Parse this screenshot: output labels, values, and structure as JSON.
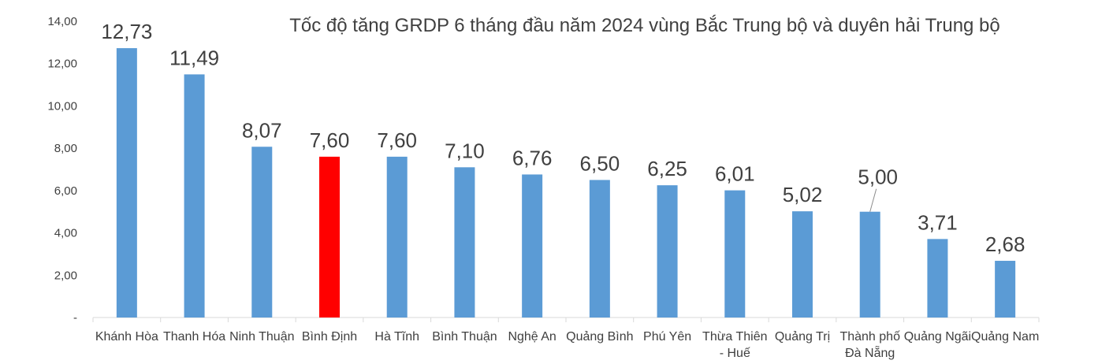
{
  "chart_data": {
    "type": "bar",
    "title": "Tốc độ tăng GRDP 6 tháng đầu năm 2024 vùng Bắc Trung bộ và duyên hải Trung bộ",
    "xlabel": "",
    "ylabel": "",
    "ylim": [
      0,
      14
    ],
    "yticks": [
      "-",
      "2,00",
      "4,00",
      "6,00",
      "8,00",
      "10,00",
      "12,00",
      "14,00"
    ],
    "grid": false,
    "legend": "none",
    "categories": [
      [
        "Khánh Hòa"
      ],
      [
        "Thanh Hóa"
      ],
      [
        "Ninh Thuận"
      ],
      [
        "Bình Định"
      ],
      [
        "Hà Tĩnh"
      ],
      [
        "Bình Thuận"
      ],
      [
        "Nghệ An"
      ],
      [
        "Quảng Bình"
      ],
      [
        "Phú Yên"
      ],
      [
        "Thừa Thiên",
        "- Huế"
      ],
      [
        "Quảng Trị"
      ],
      [
        "Thành phố",
        "Đà Nẵng"
      ],
      [
        "Quảng Ngãi"
      ],
      [
        "Quảng Nam"
      ]
    ],
    "values": [
      12.73,
      11.49,
      8.07,
      7.6,
      7.6,
      7.1,
      6.76,
      6.5,
      6.25,
      6.01,
      5.02,
      5.0,
      3.71,
      2.68
    ],
    "value_labels": [
      "12,73",
      "11,49",
      "8,07",
      "7,60",
      "7,60",
      "7,10",
      "6,76",
      "6,50",
      "6,25",
      "6,01",
      "5,02",
      "5,00",
      "3,71",
      "2,68"
    ],
    "highlight_index": 3,
    "colors": {
      "bar": "#5B9BD5",
      "highlight": "#FF0000",
      "text": "#404040",
      "axis": "#D9D9D9"
    }
  }
}
